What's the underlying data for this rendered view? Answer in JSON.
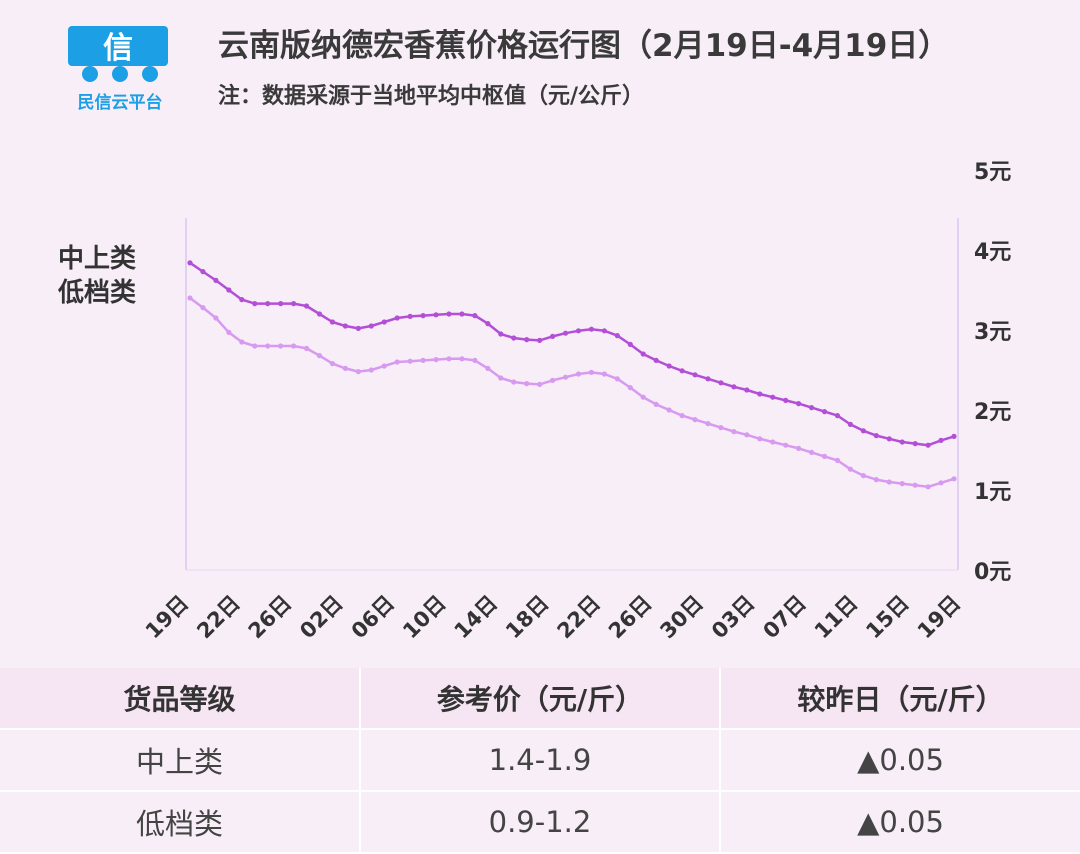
{
  "header": {
    "logo_text": "民信云平台",
    "title": "云南版纳德宏香蕉价格运行图（2月19日-4月19日）",
    "note": "注：数据采源于当地平均中枢值（元/公斤）"
  },
  "legend": [
    "中上类",
    "低档类"
  ],
  "colors": {
    "upper_line": "#b34fd6",
    "lower_line": "#d79af0",
    "rise": "#ee5fa8",
    "background": "#f8eef8"
  },
  "chart_data": {
    "type": "line",
    "title": "云南版纳德宏香蕉价格运行图（2月19日-4月19日）",
    "ylabel": "",
    "ylim": [
      0,
      5
    ],
    "y_ticks": [
      "0元",
      "1元",
      "2元",
      "3元",
      "4元",
      "5元"
    ],
    "x_tick_labels": [
      "19日",
      "22日",
      "26日",
      "02日",
      "06日",
      "10日",
      "14日",
      "18日",
      "22日",
      "26日",
      "30日",
      "03日",
      "07日",
      "11日",
      "15日",
      "19日"
    ],
    "grid": false,
    "series": [
      {
        "name": "中上类",
        "values": [
          3.84,
          3.73,
          3.62,
          3.5,
          3.38,
          3.33,
          3.33,
          3.33,
          3.33,
          3.3,
          3.2,
          3.1,
          3.05,
          3.02,
          3.05,
          3.1,
          3.15,
          3.17,
          3.18,
          3.19,
          3.2,
          3.2,
          3.18,
          3.08,
          2.95,
          2.9,
          2.88,
          2.87,
          2.92,
          2.96,
          2.99,
          3.01,
          2.99,
          2.93,
          2.82,
          2.7,
          2.62,
          2.55,
          2.49,
          2.44,
          2.39,
          2.34,
          2.29,
          2.25,
          2.2,
          2.16,
          2.12,
          2.08,
          2.03,
          1.98,
          1.93,
          1.82,
          1.74,
          1.68,
          1.64,
          1.6,
          1.58,
          1.56,
          1.62,
          1.67
        ]
      },
      {
        "name": "低档类",
        "values": [
          3.4,
          3.28,
          3.15,
          2.97,
          2.85,
          2.8,
          2.8,
          2.8,
          2.8,
          2.77,
          2.68,
          2.58,
          2.52,
          2.48,
          2.5,
          2.55,
          2.6,
          2.61,
          2.62,
          2.63,
          2.64,
          2.64,
          2.62,
          2.52,
          2.4,
          2.35,
          2.33,
          2.32,
          2.37,
          2.41,
          2.45,
          2.47,
          2.45,
          2.39,
          2.28,
          2.16,
          2.07,
          2.0,
          1.93,
          1.88,
          1.83,
          1.78,
          1.73,
          1.69,
          1.64,
          1.6,
          1.56,
          1.52,
          1.47,
          1.42,
          1.37,
          1.26,
          1.18,
          1.13,
          1.1,
          1.08,
          1.06,
          1.04,
          1.09,
          1.14
        ]
      }
    ]
  },
  "table": {
    "headers": [
      "货品等级",
      "参考价（元/斤）",
      "较昨日（元/斤）"
    ],
    "rows": [
      {
        "grade": "中上类",
        "price": "1.4-1.9",
        "change": "▲0.05"
      },
      {
        "grade": "低档类",
        "price": "0.9-1.2",
        "change": "▲0.05"
      }
    ]
  }
}
